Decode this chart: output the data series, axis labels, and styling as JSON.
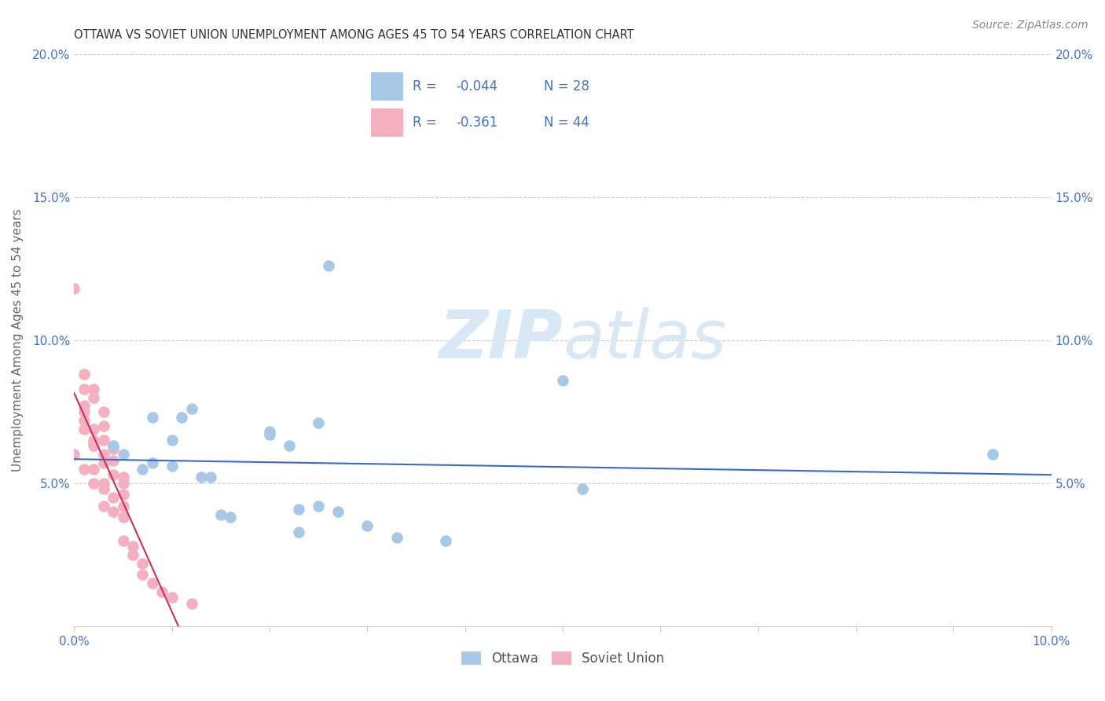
{
  "title": "OTTAWA VS SOVIET UNION UNEMPLOYMENT AMONG AGES 45 TO 54 YEARS CORRELATION CHART",
  "source": "Source: ZipAtlas.com",
  "ylabel": "Unemployment Among Ages 45 to 54 years",
  "xlim": [
    0.0,
    0.1
  ],
  "ylim": [
    0.0,
    0.2
  ],
  "xtick_labels": [
    "0.0%",
    "",
    "",
    "",
    "",
    "",
    "",
    "",
    "",
    "",
    "10.0%"
  ],
  "xtick_vals": [
    0.0,
    0.01,
    0.02,
    0.03,
    0.04,
    0.05,
    0.06,
    0.07,
    0.08,
    0.09,
    0.1
  ],
  "ytick_labels": [
    "5.0%",
    "10.0%",
    "15.0%",
    "20.0%"
  ],
  "ytick_vals": [
    0.05,
    0.1,
    0.15,
    0.2
  ],
  "ottawa_color": "#a8c8e8",
  "soviet_color": "#f4b0c0",
  "ottawa_line_color": "#3a6bc4",
  "soviet_line_color": "#c83060",
  "watermark_zip": "ZIP",
  "watermark_atlas": "atlas",
  "watermark_color": "#d8e8f4",
  "background_color": "#ffffff",
  "tick_color": "#4472c4",
  "legend_border_color": "#cccccc",
  "grid_color": "#cccccc",
  "ottawa_x": [
    0.004,
    0.005,
    0.007,
    0.008,
    0.008,
    0.01,
    0.01,
    0.011,
    0.012,
    0.013,
    0.014,
    0.015,
    0.016,
    0.02,
    0.02,
    0.022,
    0.023,
    0.023,
    0.025,
    0.025,
    0.026,
    0.027,
    0.03,
    0.033,
    0.038,
    0.05,
    0.052,
    0.094
  ],
  "ottawa_y": [
    0.063,
    0.06,
    0.055,
    0.057,
    0.073,
    0.065,
    0.056,
    0.073,
    0.076,
    0.052,
    0.052,
    0.039,
    0.038,
    0.067,
    0.068,
    0.063,
    0.041,
    0.033,
    0.042,
    0.071,
    0.126,
    0.04,
    0.035,
    0.031,
    0.03,
    0.086,
    0.048,
    0.06
  ],
  "soviet_x": [
    0.0,
    0.0,
    0.001,
    0.001,
    0.001,
    0.001,
    0.001,
    0.001,
    0.001,
    0.002,
    0.002,
    0.002,
    0.002,
    0.002,
    0.002,
    0.002,
    0.002,
    0.003,
    0.003,
    0.003,
    0.003,
    0.003,
    0.003,
    0.003,
    0.003,
    0.004,
    0.004,
    0.004,
    0.004,
    0.004,
    0.005,
    0.005,
    0.005,
    0.005,
    0.005,
    0.005,
    0.006,
    0.006,
    0.007,
    0.007,
    0.008,
    0.009,
    0.01,
    0.012
  ],
  "soviet_y": [
    0.118,
    0.06,
    0.088,
    0.083,
    0.077,
    0.075,
    0.072,
    0.069,
    0.055,
    0.083,
    0.08,
    0.069,
    0.065,
    0.064,
    0.063,
    0.055,
    0.05,
    0.075,
    0.07,
    0.065,
    0.06,
    0.057,
    0.05,
    0.048,
    0.042,
    0.062,
    0.058,
    0.053,
    0.045,
    0.04,
    0.052,
    0.05,
    0.046,
    0.042,
    0.038,
    0.03,
    0.028,
    0.025,
    0.022,
    0.018,
    0.015,
    0.012,
    0.01,
    0.008
  ]
}
